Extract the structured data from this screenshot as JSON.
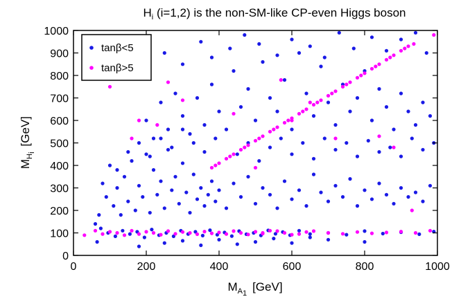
{
  "chart_data": {
    "type": "scatter",
    "title": {
      "main": "H",
      "sub": "i",
      "rest": " (i=1,2) is the non-SM-like CP-even Higgs boson"
    },
    "xlabel": {
      "main": "M",
      "sub": "A",
      "subsub": "1",
      "unit": "[GeV]"
    },
    "ylabel": {
      "main": "M",
      "sub": "H",
      "subsub": "i",
      "unit": "[GeV]"
    },
    "xlim": [
      0,
      1000
    ],
    "ylim": [
      0,
      1000
    ],
    "xticks": [
      0,
      200,
      400,
      600,
      800,
      1000
    ],
    "yticks": [
      0,
      100,
      200,
      300,
      400,
      500,
      600,
      700,
      800,
      900,
      1000
    ],
    "grid": false,
    "legend_position": "top-left",
    "series": [
      {
        "name": "tanβ<5",
        "color": "#1a1ae6",
        "points": [
          [
            70,
            180
          ],
          [
            80,
            320
          ],
          [
            90,
            260
          ],
          [
            100,
            400
          ],
          [
            110,
            220
          ],
          [
            120,
            300
          ],
          [
            130,
            180
          ],
          [
            140,
            350
          ],
          [
            150,
            240
          ],
          [
            160,
            420
          ],
          [
            170,
            200
          ],
          [
            180,
            310
          ],
          [
            190,
            260
          ],
          [
            200,
            450
          ],
          [
            210,
            190
          ],
          [
            220,
            380
          ],
          [
            230,
            270
          ],
          [
            240,
            330
          ],
          [
            250,
            210
          ],
          [
            260,
            470
          ],
          [
            270,
            290
          ],
          [
            280,
            350
          ],
          [
            290,
            230
          ],
          [
            300,
            410
          ],
          [
            310,
            280
          ],
          [
            320,
            190
          ],
          [
            330,
            360
          ],
          [
            340,
            250
          ],
          [
            350,
            300
          ],
          [
            360,
            220
          ],
          [
            370,
            270
          ],
          [
            380,
            330
          ],
          [
            390,
            240
          ],
          [
            400,
            290
          ],
          [
            420,
            210
          ],
          [
            440,
            320
          ],
          [
            460,
            260
          ],
          [
            480,
            350
          ],
          [
            500,
            230
          ],
          [
            520,
            300
          ],
          [
            540,
            270
          ],
          [
            560,
            210
          ],
          [
            580,
            330
          ],
          [
            600,
            250
          ],
          [
            620,
            290
          ],
          [
            640,
            220
          ],
          [
            660,
            360
          ],
          [
            680,
            280
          ],
          [
            700,
            240
          ],
          [
            720,
            310
          ],
          [
            740,
            260
          ],
          [
            760,
            340
          ],
          [
            780,
            220
          ],
          [
            800,
            290
          ],
          [
            820,
            250
          ],
          [
            840,
            320
          ],
          [
            860,
            270
          ],
          [
            880,
            230
          ],
          [
            900,
            300
          ],
          [
            920,
            260
          ],
          [
            940,
            280
          ],
          [
            960,
            240
          ],
          [
            980,
            310
          ],
          [
            200,
            600
          ],
          [
            220,
            520
          ],
          [
            240,
            680
          ],
          [
            260,
            560
          ],
          [
            280,
            720
          ],
          [
            300,
            620
          ],
          [
            320,
            540
          ],
          [
            340,
            700
          ],
          [
            360,
            580
          ],
          [
            380,
            760
          ],
          [
            400,
            640
          ],
          [
            420,
            560
          ],
          [
            440,
            820
          ],
          [
            460,
            660
          ],
          [
            480,
            740
          ],
          [
            500,
            600
          ],
          [
            520,
            860
          ],
          [
            540,
            700
          ],
          [
            560,
            640
          ],
          [
            580,
            780
          ],
          [
            600,
            560
          ],
          [
            620,
            900
          ],
          [
            640,
            720
          ],
          [
            660,
            620
          ],
          [
            680,
            840
          ],
          [
            700,
            680
          ],
          [
            720,
            580
          ],
          [
            740,
            760
          ],
          [
            760,
            640
          ],
          [
            780,
            700
          ],
          [
            800,
            820
          ],
          [
            820,
            600
          ],
          [
            840,
            740
          ],
          [
            860,
            660
          ],
          [
            880,
            560
          ],
          [
            900,
            720
          ],
          [
            920,
            640
          ],
          [
            940,
            580
          ],
          [
            960,
            680
          ],
          [
            980,
            620
          ],
          [
            250,
            900
          ],
          [
            300,
            850
          ],
          [
            350,
            950
          ],
          [
            380,
            880
          ],
          [
            430,
            920
          ],
          [
            470,
            980
          ],
          [
            510,
            940
          ],
          [
            560,
            890
          ],
          [
            600,
            960
          ],
          [
            650,
            930
          ],
          [
            690,
            880
          ],
          [
            730,
            990
          ],
          [
            770,
            920
          ],
          [
            820,
            970
          ],
          [
            860,
            910
          ],
          [
            900,
            960
          ],
          [
            940,
            990
          ],
          [
            970,
            900
          ],
          [
            450,
            450
          ],
          [
            480,
            500
          ],
          [
            510,
            420
          ],
          [
            540,
            480
          ],
          [
            570,
            520
          ],
          [
            600,
            450
          ],
          [
            630,
            500
          ],
          [
            660,
            430
          ],
          [
            690,
            520
          ],
          [
            720,
            470
          ],
          [
            750,
            500
          ],
          [
            780,
            440
          ],
          [
            810,
            510
          ],
          [
            840,
            460
          ],
          [
            870,
            480
          ],
          [
            900,
            440
          ],
          [
            930,
            520
          ],
          [
            960,
            470
          ],
          [
            990,
            500
          ],
          [
            75,
            120
          ],
          [
            95,
            100
          ],
          [
            115,
            85
          ],
          [
            135,
            110
          ],
          [
            155,
            95
          ],
          [
            175,
            105
          ],
          [
            195,
            80
          ],
          [
            215,
            115
          ],
          [
            235,
            90
          ],
          [
            255,
            100
          ],
          [
            275,
            85
          ],
          [
            295,
            110
          ],
          [
            315,
            95
          ],
          [
            335,
            105
          ],
          [
            355,
            88
          ],
          [
            375,
            112
          ],
          [
            395,
            92
          ],
          [
            415,
            102
          ],
          [
            435,
            86
          ],
          [
            455,
            108
          ],
          [
            475,
            94
          ],
          [
            495,
            100
          ],
          [
            515,
            89
          ],
          [
            535,
            111
          ],
          [
            555,
            96
          ],
          [
            575,
            104
          ],
          [
            595,
            90
          ],
          [
            620,
            110
          ],
          [
            650,
            95
          ],
          [
            700,
            100
          ],
          [
            750,
            92
          ],
          [
            800,
            108
          ],
          [
            850,
            97
          ],
          [
            900,
            103
          ],
          [
            950,
            94
          ],
          [
            990,
            106
          ],
          [
            60,
            140
          ],
          [
            65,
            60
          ],
          [
            180,
            40
          ],
          [
            250,
            55
          ],
          [
            300,
            65
          ],
          [
            350,
            45
          ],
          [
            400,
            70
          ],
          [
            450,
            50
          ],
          [
            500,
            60
          ],
          [
            550,
            75
          ],
          [
            600,
            55
          ],
          [
            650,
            80
          ],
          [
            700,
            70
          ],
          [
            800,
            60
          ],
          [
            120,
            380
          ],
          [
            150,
            460
          ],
          [
            180,
            500
          ],
          [
            210,
            440
          ],
          [
            240,
            520
          ],
          [
            270,
            480
          ],
          [
            300,
            560
          ],
          [
            330,
            500
          ],
          [
            360,
            460
          ],
          [
            390,
            520
          ]
        ]
      },
      {
        "name": "tanβ>5",
        "color": "#ff00ff",
        "points": [
          [
            380,
            390
          ],
          [
            400,
            410
          ],
          [
            420,
            430
          ],
          [
            440,
            450
          ],
          [
            460,
            470
          ],
          [
            480,
            490
          ],
          [
            500,
            510
          ],
          [
            520,
            530
          ],
          [
            540,
            550
          ],
          [
            560,
            570
          ],
          [
            580,
            590
          ],
          [
            600,
            610
          ],
          [
            620,
            630
          ],
          [
            640,
            650
          ],
          [
            660,
            670
          ],
          [
            680,
            690
          ],
          [
            700,
            710
          ],
          [
            720,
            730
          ],
          [
            740,
            750
          ],
          [
            760,
            770
          ],
          [
            780,
            790
          ],
          [
            800,
            810
          ],
          [
            820,
            830
          ],
          [
            840,
            850
          ],
          [
            860,
            870
          ],
          [
            880,
            890
          ],
          [
            900,
            910
          ],
          [
            920,
            930
          ],
          [
            935,
            940
          ],
          [
            390,
            400
          ],
          [
            430,
            440
          ],
          [
            470,
            480
          ],
          [
            510,
            520
          ],
          [
            550,
            560
          ],
          [
            590,
            600
          ],
          [
            630,
            640
          ],
          [
            670,
            680
          ],
          [
            710,
            720
          ],
          [
            750,
            760
          ],
          [
            790,
            800
          ],
          [
            830,
            840
          ],
          [
            870,
            880
          ],
          [
            910,
            920
          ],
          [
            30,
            90
          ],
          [
            60,
            110
          ],
          [
            80,
            95
          ],
          [
            100,
            105
          ],
          [
            120,
            100
          ],
          [
            140,
            90
          ],
          [
            160,
            110
          ],
          [
            180,
            95
          ],
          [
            200,
            105
          ],
          [
            220,
            100
          ],
          [
            240,
            92
          ],
          [
            260,
            108
          ],
          [
            280,
            96
          ],
          [
            300,
            104
          ],
          [
            320,
            100
          ],
          [
            340,
            94
          ],
          [
            360,
            106
          ],
          [
            380,
            98
          ],
          [
            400,
            102
          ],
          [
            420,
            95
          ],
          [
            440,
            108
          ],
          [
            460,
            100
          ],
          [
            480,
            93
          ],
          [
            500,
            105
          ],
          [
            520,
            97
          ],
          [
            540,
            110
          ],
          [
            580,
            100
          ],
          [
            620,
            95
          ],
          [
            660,
            108
          ],
          [
            700,
            100
          ],
          [
            740,
            96
          ],
          [
            780,
            104
          ],
          [
            820,
            98
          ],
          [
            860,
            102
          ],
          [
            900,
            106
          ],
          [
            940,
            100
          ],
          [
            980,
            110
          ],
          [
            100,
            750
          ],
          [
            160,
            520
          ],
          [
            180,
            600
          ],
          [
            230,
            580
          ],
          [
            260,
            770
          ],
          [
            300,
            690
          ],
          [
            440,
            630
          ],
          [
            500,
            390
          ],
          [
            570,
            780
          ],
          [
            600,
            600
          ],
          [
            650,
            680
          ],
          [
            720,
            520
          ],
          [
            840,
            530
          ],
          [
            880,
            480
          ],
          [
            930,
            200
          ],
          [
            990,
            980
          ],
          [
            520,
            100
          ],
          [
            560,
            108
          ],
          [
            600,
            92
          ],
          [
            640,
            104
          ]
        ]
      }
    ]
  }
}
